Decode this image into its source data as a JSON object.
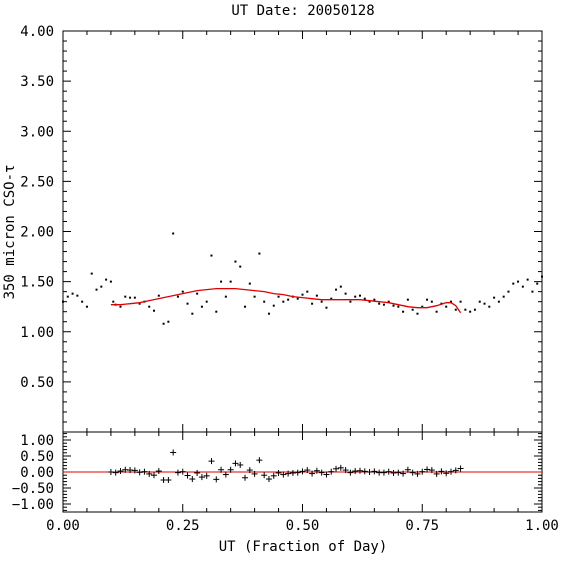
{
  "chart_data": [
    {
      "type": "scatter",
      "title": "UT Date: 20050128",
      "xlabel": "",
      "ylabel": "350 micron CSO-τ",
      "xlim": [
        0.0,
        1.0
      ],
      "ylim": [
        0.0,
        4.0
      ],
      "xticks": [
        0.0,
        0.25,
        0.5,
        0.75,
        1.0
      ],
      "yticks": [
        0.5,
        1.0,
        1.5,
        2.0,
        2.5,
        3.0,
        3.5,
        4.0
      ],
      "yticklabels": [
        "0.50",
        "1.00",
        "1.50",
        "2.00",
        "2.50",
        "3.00",
        "3.50",
        "4.00"
      ],
      "series": [
        {
          "style": "points",
          "color": "#000000",
          "x": [
            0.0,
            0.01,
            0.02,
            0.03,
            0.04,
            0.05,
            0.06,
            0.07,
            0.08,
            0.09,
            0.1,
            0.105,
            0.11,
            0.12,
            0.13,
            0.14,
            0.15,
            0.16,
            0.17,
            0.18,
            0.19,
            0.2,
            0.21,
            0.22,
            0.23,
            0.24,
            0.25,
            0.26,
            0.27,
            0.28,
            0.29,
            0.3,
            0.31,
            0.32,
            0.33,
            0.34,
            0.35,
            0.36,
            0.37,
            0.38,
            0.39,
            0.4,
            0.41,
            0.42,
            0.43,
            0.44,
            0.45,
            0.46,
            0.47,
            0.48,
            0.49,
            0.5,
            0.51,
            0.52,
            0.53,
            0.54,
            0.55,
            0.56,
            0.57,
            0.58,
            0.59,
            0.6,
            0.61,
            0.62,
            0.63,
            0.64,
            0.65,
            0.66,
            0.67,
            0.68,
            0.69,
            0.7,
            0.71,
            0.72,
            0.73,
            0.74,
            0.75,
            0.76,
            0.77,
            0.78,
            0.79,
            0.8,
            0.81,
            0.82,
            0.83,
            0.84,
            0.85,
            0.86,
            0.87,
            0.88,
            0.89,
            0.9,
            0.91,
            0.92,
            0.93,
            0.94,
            0.95,
            0.96,
            0.97,
            0.98,
            0.99,
            1.0
          ],
          "y": [
            1.3,
            1.35,
            1.38,
            1.36,
            1.3,
            1.25,
            1.58,
            1.42,
            1.45,
            1.52,
            1.5,
            1.3,
            1.27,
            1.25,
            1.35,
            1.34,
            1.34,
            1.28,
            1.3,
            1.25,
            1.21,
            1.36,
            1.08,
            1.1,
            1.98,
            1.35,
            1.4,
            1.28,
            1.18,
            1.38,
            1.25,
            1.3,
            1.76,
            1.2,
            1.5,
            1.35,
            1.5,
            1.7,
            1.65,
            1.25,
            1.48,
            1.35,
            1.78,
            1.3,
            1.18,
            1.26,
            1.35,
            1.3,
            1.32,
            1.35,
            1.33,
            1.37,
            1.4,
            1.28,
            1.36,
            1.3,
            1.24,
            1.33,
            1.42,
            1.45,
            1.38,
            1.3,
            1.35,
            1.36,
            1.33,
            1.3,
            1.32,
            1.28,
            1.27,
            1.3,
            1.26,
            1.25,
            1.2,
            1.32,
            1.22,
            1.18,
            1.25,
            1.32,
            1.3,
            1.2,
            1.28,
            1.25,
            1.3,
            1.22,
            1.3,
            1.22,
            1.2,
            1.22,
            1.3,
            1.28,
            1.25,
            1.34,
            1.3,
            1.35,
            1.4,
            1.48,
            1.5,
            1.45,
            1.52,
            1.4,
            1.48,
            1.55
          ]
        },
        {
          "style": "line",
          "color": "#e00000",
          "x": [
            0.1,
            0.12,
            0.14,
            0.16,
            0.18,
            0.2,
            0.22,
            0.24,
            0.26,
            0.28,
            0.3,
            0.32,
            0.34,
            0.36,
            0.38,
            0.4,
            0.42,
            0.44,
            0.46,
            0.48,
            0.5,
            0.52,
            0.54,
            0.56,
            0.58,
            0.6,
            0.62,
            0.64,
            0.66,
            0.68,
            0.7,
            0.72,
            0.74,
            0.76,
            0.78,
            0.8,
            0.81,
            0.82,
            0.83
          ],
          "y": [
            1.27,
            1.27,
            1.28,
            1.29,
            1.31,
            1.33,
            1.35,
            1.37,
            1.39,
            1.41,
            1.42,
            1.43,
            1.43,
            1.43,
            1.42,
            1.41,
            1.4,
            1.38,
            1.37,
            1.35,
            1.34,
            1.33,
            1.32,
            1.32,
            1.32,
            1.32,
            1.32,
            1.31,
            1.3,
            1.29,
            1.27,
            1.25,
            1.24,
            1.24,
            1.26,
            1.29,
            1.29,
            1.26,
            1.19
          ]
        }
      ]
    },
    {
      "type": "scatter",
      "xlabel": "UT (Fraction of Day)",
      "ylabel": "",
      "xlim": [
        0.0,
        1.0
      ],
      "ylim": [
        -1.25,
        1.25
      ],
      "xticks": [
        0.0,
        0.25,
        0.5,
        0.75,
        1.0
      ],
      "xticklabels": [
        "0.00",
        "0.25",
        "0.50",
        "0.75",
        "1.00"
      ],
      "yticks": [
        -1.0,
        -0.5,
        0.0,
        0.5,
        1.0
      ],
      "yticklabels": [
        "−1.00",
        "−0.50",
        "0.00",
        "0.50",
        "1.00"
      ],
      "series": [
        {
          "style": "plus",
          "color": "#000000",
          "x": [
            0.1,
            0.11,
            0.12,
            0.13,
            0.14,
            0.15,
            0.16,
            0.17,
            0.18,
            0.19,
            0.2,
            0.21,
            0.22,
            0.23,
            0.24,
            0.25,
            0.26,
            0.27,
            0.28,
            0.29,
            0.3,
            0.31,
            0.32,
            0.33,
            0.34,
            0.35,
            0.36,
            0.37,
            0.38,
            0.39,
            0.4,
            0.41,
            0.42,
            0.43,
            0.44,
            0.45,
            0.46,
            0.47,
            0.48,
            0.49,
            0.5,
            0.51,
            0.52,
            0.53,
            0.54,
            0.55,
            0.56,
            0.57,
            0.58,
            0.59,
            0.6,
            0.61,
            0.62,
            0.63,
            0.64,
            0.65,
            0.66,
            0.67,
            0.68,
            0.69,
            0.7,
            0.71,
            0.72,
            0.73,
            0.74,
            0.75,
            0.76,
            0.77,
            0.78,
            0.79,
            0.8,
            0.81,
            0.82,
            0.83
          ],
          "y": [
            0.0,
            -0.02,
            0.03,
            0.07,
            0.06,
            0.05,
            -0.01,
            0.01,
            -0.06,
            -0.1,
            0.03,
            -0.25,
            -0.25,
            0.61,
            -0.02,
            0.01,
            -0.11,
            -0.22,
            -0.03,
            -0.16,
            -0.12,
            0.34,
            -0.23,
            0.07,
            -0.08,
            0.07,
            0.27,
            0.22,
            -0.18,
            0.06,
            -0.06,
            0.37,
            -0.1,
            -0.22,
            -0.12,
            -0.03,
            -0.08,
            -0.05,
            -0.03,
            -0.02,
            0.02,
            0.06,
            -0.05,
            0.04,
            -0.02,
            -0.08,
            0.01,
            0.1,
            0.13,
            0.06,
            -0.02,
            0.03,
            0.04,
            0.02,
            0.0,
            0.02,
            -0.02,
            -0.02,
            0.01,
            -0.03,
            -0.02,
            -0.05,
            0.07,
            -0.02,
            -0.06,
            0.01,
            0.08,
            0.06,
            -0.06,
            0.02,
            -0.04,
            0.01,
            0.05,
            0.11
          ]
        },
        {
          "style": "hline",
          "color": "#e00000",
          "y": 0.0
        }
      ]
    }
  ]
}
